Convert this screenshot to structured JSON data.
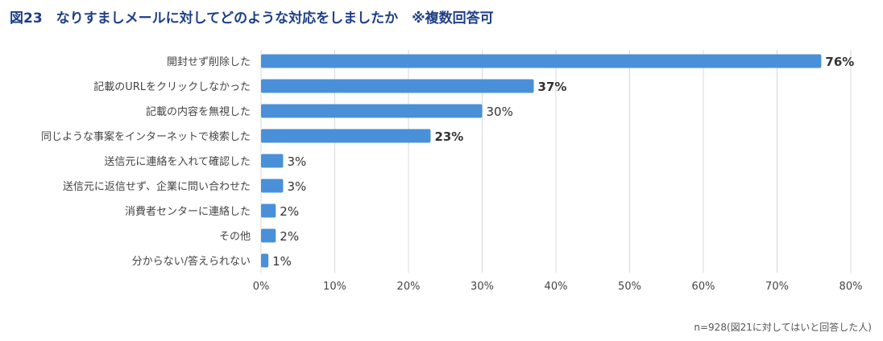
{
  "chart_data": {
    "type": "bar",
    "orientation": "horizontal",
    "title": "図23　なりすましメールに対してどのような対応をしましたか　※複数回答可",
    "categories": [
      "開封せず削除した",
      "記載のURLをクリックしなかった",
      "記載の内容を無視した",
      "同じような事案をインターネットで検索した",
      "送信元に連絡を入れて確認した",
      "送信元に返信せず、企業に問い合わせた",
      "消費者センターに連絡した",
      "その他",
      "分からない/答えられない"
    ],
    "values": [
      76,
      37,
      30,
      23,
      3,
      3,
      2,
      2,
      1
    ],
    "value_labels": [
      "76%",
      "37%",
      "30%",
      "23%",
      "3%",
      "3%",
      "2%",
      "2%",
      "1%"
    ],
    "bold_labels": [
      true,
      true,
      false,
      true,
      false,
      false,
      false,
      false,
      false
    ],
    "xlim": [
      0,
      80
    ],
    "xticks": [
      0,
      10,
      20,
      30,
      40,
      50,
      60,
      70,
      80
    ],
    "xtick_labels": [
      "0%",
      "10%",
      "20%",
      "30%",
      "40%",
      "50%",
      "60%",
      "70%",
      "80%"
    ],
    "grid": true,
    "xlabel": "",
    "ylabel": "",
    "note": "n=928(図21に対してはいと回答した人)"
  },
  "colors": {
    "bar": "#4a90d9",
    "title": "#1f3f86",
    "grid": "#d9d9d9",
    "text": "#444444"
  }
}
